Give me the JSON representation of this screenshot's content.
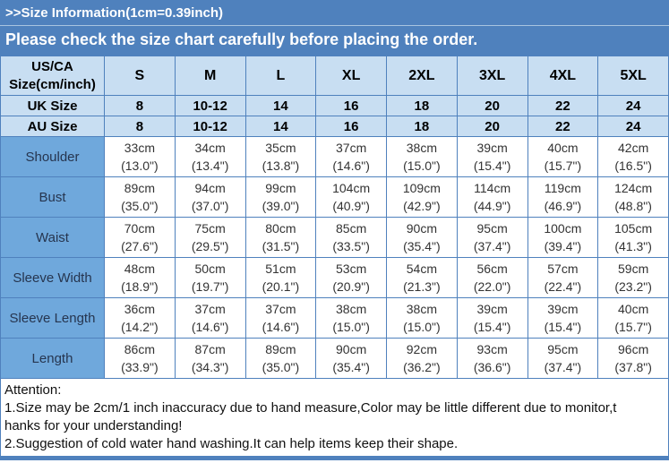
{
  "banner": {
    "title": ">>Size Information(1cm=0.39inch)",
    "subtitle": "Please check the size chart carefully before placing the order."
  },
  "colors": {
    "banner_blue": "#4f81bd",
    "header_cell_blue": "#c8def2",
    "label_cell_blue": "#6fa8dc",
    "border_blue": "#4f81bd",
    "data_text": "#333333"
  },
  "size_table": {
    "corner": {
      "line1": "US/CA",
      "line2": "Size(cm/inch)"
    },
    "size_columns": [
      "S",
      "M",
      "L",
      "XL",
      "2XL",
      "3XL",
      "4XL",
      "5XL"
    ],
    "size_rows": [
      {
        "label": "UK Size",
        "values": [
          "8",
          "10-12",
          "14",
          "16",
          "18",
          "20",
          "22",
          "24"
        ]
      },
      {
        "label": "AU Size",
        "values": [
          "8",
          "10-12",
          "14",
          "16",
          "18",
          "20",
          "22",
          "24"
        ]
      }
    ],
    "measurement_rows": [
      {
        "label": "Shoulder",
        "cm": [
          "33cm",
          "34cm",
          "35cm",
          "37cm",
          "38cm",
          "39cm",
          "40cm",
          "42cm"
        ],
        "inch": [
          "(13.0\")",
          "(13.4\")",
          "(13.8\")",
          "(14.6\")",
          "(15.0\")",
          "(15.4\")",
          "(15.7\")",
          "(16.5\")"
        ]
      },
      {
        "label": "Bust",
        "cm": [
          "89cm",
          "94cm",
          "99cm",
          "104cm",
          "109cm",
          "114cm",
          "119cm",
          "124cm"
        ],
        "inch": [
          "(35.0\")",
          "(37.0\")",
          "(39.0\")",
          "(40.9\")",
          "(42.9\")",
          "(44.9\")",
          "(46.9\")",
          "(48.8\")"
        ]
      },
      {
        "label": "Waist",
        "cm": [
          "70cm",
          "75cm",
          "80cm",
          "85cm",
          "90cm",
          "95cm",
          "100cm",
          "105cm"
        ],
        "inch": [
          "(27.6\")",
          "(29.5\")",
          "(31.5\")",
          "(33.5\")",
          "(35.4\")",
          "(37.4\")",
          "(39.4\")",
          "(41.3\")"
        ]
      },
      {
        "label": "Sleeve Width",
        "cm": [
          "48cm",
          "50cm",
          "51cm",
          "53cm",
          "54cm",
          "56cm",
          "57cm",
          "59cm"
        ],
        "inch": [
          "(18.9\")",
          "(19.7\")",
          "(20.1\")",
          "(20.9\")",
          "(21.3\")",
          "(22.0\")",
          "(22.4\")",
          "(23.2\")"
        ]
      },
      {
        "label": "Sleeve Length",
        "cm": [
          "36cm",
          "37cm",
          "37cm",
          "38cm",
          "38cm",
          "39cm",
          "39cm",
          "40cm"
        ],
        "inch": [
          "(14.2\")",
          "(14.6\")",
          "(14.6\")",
          "(15.0\")",
          "(15.0\")",
          "(15.4\")",
          "(15.4\")",
          "(15.7\")"
        ]
      },
      {
        "label": "Length",
        "cm": [
          "86cm",
          "87cm",
          "89cm",
          "90cm",
          "92cm",
          "93cm",
          "95cm",
          "96cm"
        ],
        "inch": [
          "(33.9\")",
          "(34.3\")",
          "(35.0\")",
          "(35.4\")",
          "(36.2\")",
          "(36.6\")",
          "(37.4\")",
          "(37.8\")"
        ]
      }
    ]
  },
  "attention": {
    "lines": [
      "Attention:",
      "1.Size may be 2cm/1 inch inaccuracy due to hand measure,Color may be little different due to monitor,t",
      "hanks for your understanding!",
      "2.Suggestion of cold water hand washing.It can help items keep their shape."
    ]
  }
}
